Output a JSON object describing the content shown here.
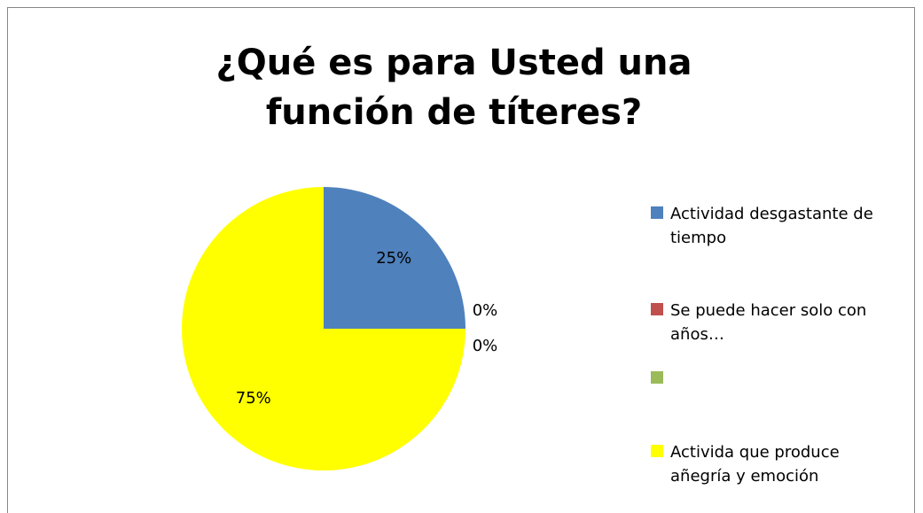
{
  "chart_data": {
    "type": "pie",
    "title": "¿Qué es para Usted una función de títeres?",
    "categories": [
      "Actividad desgastante de tiempo",
      "Se puede hacer solo con años…",
      null,
      "Activida que produce añegría y emoción"
    ],
    "values": [
      25,
      0,
      0,
      75
    ],
    "value_labels": [
      "25%",
      "0%",
      "0%",
      "75%"
    ],
    "colors": [
      "#4f81bd",
      "#c0504d",
      "#9bbb59",
      "#ffff00"
    ],
    "legend": "right"
  }
}
